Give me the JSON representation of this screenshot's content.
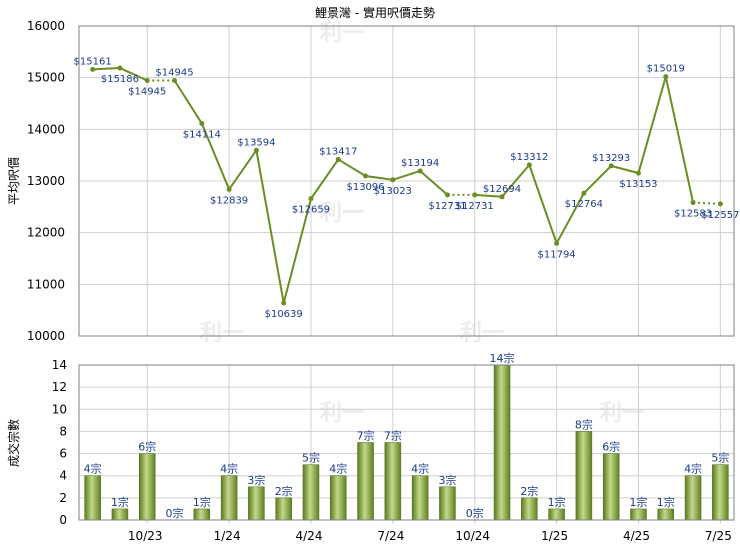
{
  "chart_data": [
    {
      "type": "line",
      "title": "鯉景灣 - 實用呎價走勢",
      "ylabel": "平均呎價",
      "ylim": [
        10000,
        16000
      ],
      "yticks": [
        10000,
        11000,
        12000,
        13000,
        14000,
        15000,
        16000
      ],
      "line_color": "#6b8e23",
      "label_color": "#1a3a8c",
      "points": [
        {
          "label": "$15161",
          "value": 15161
        },
        {
          "label": "$15186",
          "value": 15186
        },
        {
          "label": "$14945",
          "value": 14945
        },
        {
          "label": "$14945",
          "value": 14945
        },
        {
          "label": "$14114",
          "value": 14114
        },
        {
          "label": "$12839",
          "value": 12839
        },
        {
          "label": "$13594",
          "value": 13594
        },
        {
          "label": "$10639",
          "value": 10639
        },
        {
          "label": "$12659",
          "value": 12659
        },
        {
          "label": "$13417",
          "value": 13417
        },
        {
          "label": "$13096",
          "value": 13096
        },
        {
          "label": "$13023",
          "value": 13023
        },
        {
          "label": "$13194",
          "value": 13194
        },
        {
          "label": "$12731",
          "value": 12731
        },
        {
          "label": "$12731",
          "value": 12731
        },
        {
          "label": "$12694",
          "value": 12694
        },
        {
          "label": "$13312",
          "value": 13312
        },
        {
          "label": "$11794",
          "value": 11794
        },
        {
          "label": "$12764",
          "value": 12764
        },
        {
          "label": "$13293",
          "value": 13293
        },
        {
          "label": "$13153",
          "value": 13153
        },
        {
          "label": "$15019",
          "value": 15019
        },
        {
          "label": "$12583",
          "value": 12583
        },
        {
          "label": "$12557",
          "value": 12557
        }
      ],
      "dotted_segments": [
        2,
        13,
        22
      ]
    },
    {
      "type": "bar",
      "ylabel": "成交宗數",
      "ylim": [
        0,
        14
      ],
      "yticks": [
        0,
        2,
        4,
        6,
        8,
        10,
        12,
        14
      ],
      "xticks": [
        {
          "index": 2.5,
          "label": "10/23"
        },
        {
          "index": 5.5,
          "label": "1/24"
        },
        {
          "index": 8.5,
          "label": "4/24"
        },
        {
          "index": 11.5,
          "label": "7/24"
        },
        {
          "index": 14.5,
          "label": "10/24"
        },
        {
          "index": 17.5,
          "label": "1/25"
        },
        {
          "index": 20.5,
          "label": "4/25"
        },
        {
          "index": 23.5,
          "label": "7/25"
        }
      ],
      "bar_color": "#7f9a35",
      "values": [
        4,
        1,
        6,
        0,
        1,
        4,
        3,
        2,
        5,
        4,
        7,
        7,
        4,
        3,
        0,
        14,
        2,
        1,
        8,
        6,
        1,
        1,
        4,
        5
      ],
      "labels": [
        "4宗",
        "1宗",
        "6宗",
        "0宗",
        "1宗",
        "4宗",
        "3宗",
        "2宗",
        "5宗",
        "4宗",
        "7宗",
        "7宗",
        "4宗",
        "3宗",
        "0宗",
        "14宗",
        "2宗",
        "1宗",
        "8宗",
        "6宗",
        "1宗",
        "1宗",
        "4宗",
        "5宗"
      ]
    }
  ]
}
